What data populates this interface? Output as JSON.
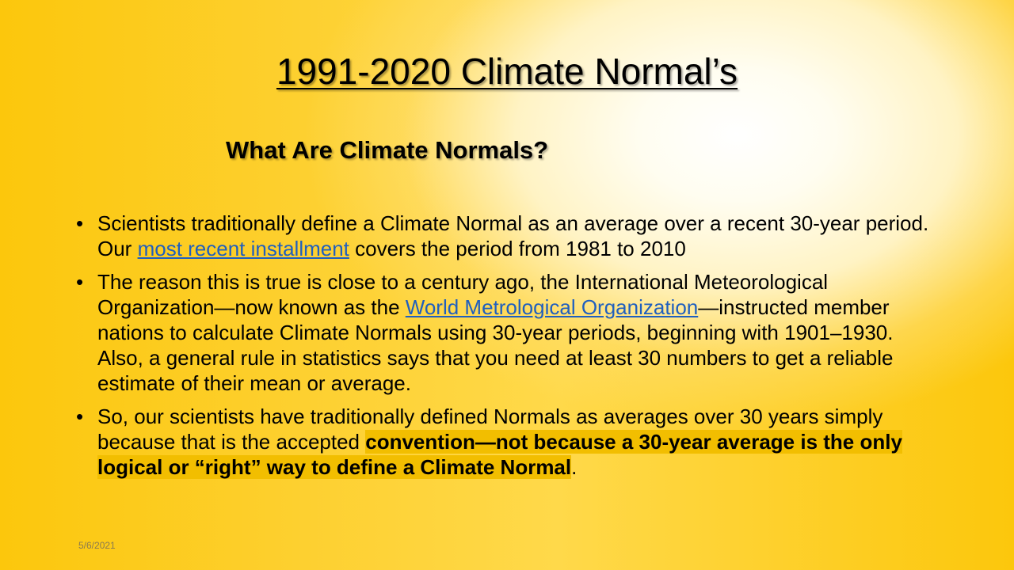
{
  "slide": {
    "title": "1991-2020 Climate Normal’s",
    "subtitle": "What Are Climate Normals?",
    "bullet_char": "•",
    "bullets": [
      {
        "t1": "Scientists traditionally define a Climate Normal as an average over a recent 30-year period. Our ",
        "link": "most recent installment",
        "t2": " covers the period from 1981 to 2010"
      },
      {
        "t1": "The reason this is true is close to a century ago, the International Meteorological Organization—now known as the ",
        "link": "World Metrological Organization",
        "t2": "—instructed member nations to calculate Climate Normals using 30-year periods, beginning with 1901–1930. Also, a general rule in statistics says that you need at least 30 numbers to get a reliable estimate of their mean or average."
      },
      {
        "t1": "So, our scientists have traditionally defined Normals as averages over 30 years simply because that is the accepted ",
        "highlight": "convention—not because a 30-year average is the only logical or “right” way to define a Climate Normal",
        "t2": "."
      }
    ],
    "date": "5/6/2021"
  }
}
